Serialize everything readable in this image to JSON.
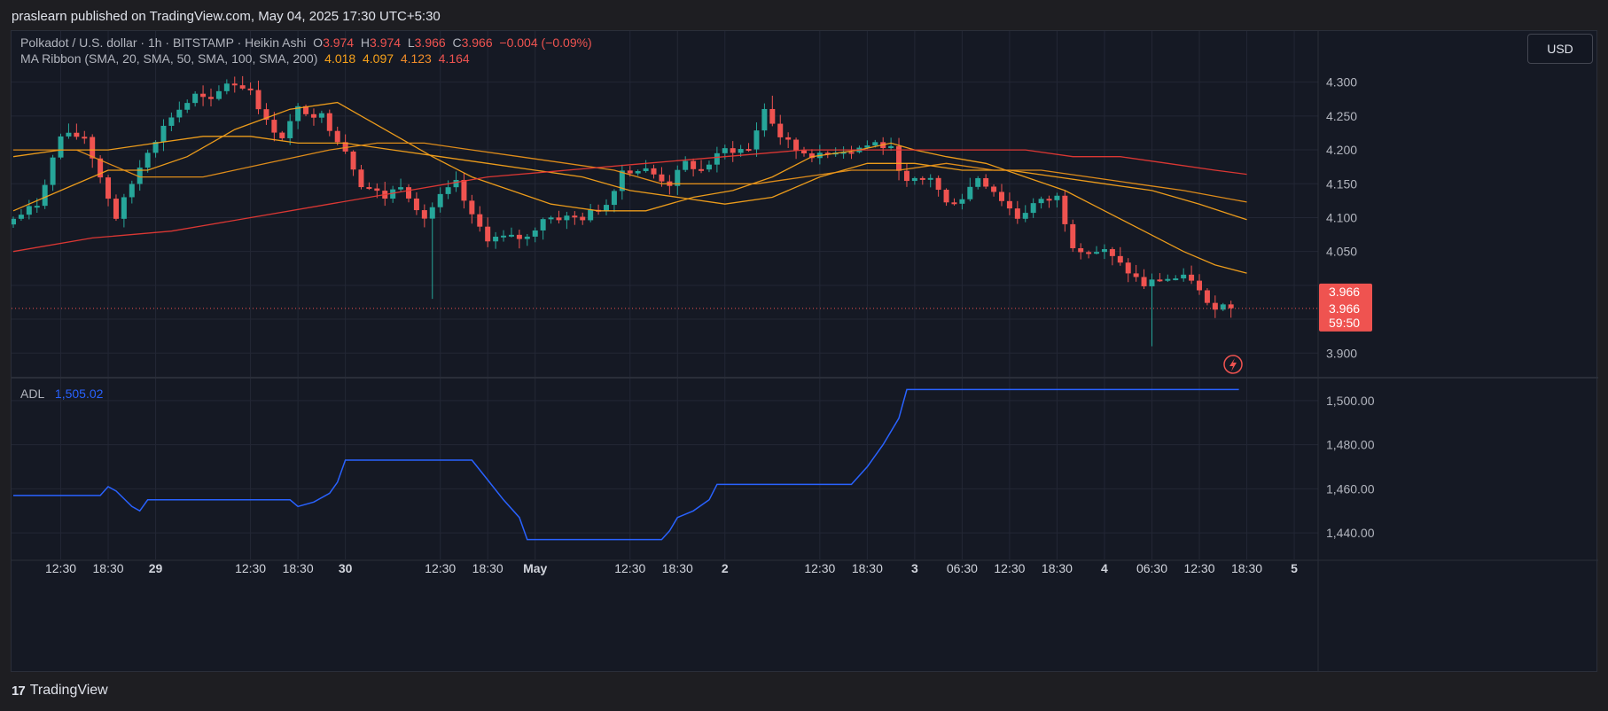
{
  "header": {
    "publish_line": "praslearn published on TradingView.com, May 04, 2025 17:30 UTC+5:30"
  },
  "legend": {
    "symbol": "Polkadot / U.S. dollar · 1h · BITSTAMP · Heikin Ashi",
    "o_label": "O",
    "o_value": "3.974",
    "h_label": "H",
    "h_value": "3.974",
    "l_label": "L",
    "l_value": "3.966",
    "c_label": "C",
    "c_value": "3.966",
    "change": "−0.004 (−0.09%)",
    "ma_title": "MA Ribbon (SMA, 20, SMA, 50, SMA, 100, SMA, 200)",
    "ma_values": [
      "4.018",
      "4.097",
      "4.123",
      "4.164"
    ],
    "adl_title": "ADL",
    "adl_value": "1,505.02"
  },
  "currency_button": "USD",
  "price_tag": {
    "last": "3.966",
    "close": "3.966",
    "countdown": "59:50"
  },
  "brand": {
    "logo": "17",
    "name": "TradingView"
  },
  "colors": {
    "up": "#26a69a",
    "down": "#ef5350",
    "ma20": "#f7a21b",
    "ma50": "#f7a21b",
    "ma100": "#e8911a",
    "ma200": "#e53935",
    "adl": "#2962ff",
    "background": "#151924",
    "grid": "#232735"
  },
  "chart_data": [
    {
      "type": "candlestick",
      "style": "Heikin Ashi",
      "timeframe": "1h",
      "y_ticks": [
        3.9,
        3.95,
        4.0,
        4.05,
        4.1,
        4.15,
        4.2,
        4.25,
        4.3
      ],
      "y_tick_labels": [
        "3.900",
        "",
        "",
        "4.050",
        "4.100",
        "4.150",
        "4.200",
        "4.250",
        "4.300"
      ],
      "ylim": [
        3.865,
        4.365
      ],
      "x_labels": [
        {
          "label": "12:30",
          "bar": 6
        },
        {
          "label": "18:30",
          "bar": 12
        },
        {
          "label": "29",
          "bar": 18
        },
        {
          "label": "12:30",
          "bar": 30
        },
        {
          "label": "18:30",
          "bar": 36
        },
        {
          "label": "30",
          "bar": 42
        },
        {
          "label": "12:30",
          "bar": 54
        },
        {
          "label": "18:30",
          "bar": 60
        },
        {
          "label": "May",
          "bar": 66
        },
        {
          "label": "12:30",
          "bar": 78
        },
        {
          "label": "18:30",
          "bar": 84
        },
        {
          "label": "2",
          "bar": 90
        },
        {
          "label": "12:30",
          "bar": 102
        },
        {
          "label": "18:30",
          "bar": 108
        },
        {
          "label": "3",
          "bar": 114
        },
        {
          "label": "06:30",
          "bar": 120
        },
        {
          "label": "12:30",
          "bar": 126
        },
        {
          "label": "18:30",
          "bar": 132
        },
        {
          "label": "4",
          "bar": 138
        },
        {
          "label": "06:30",
          "bar": 144
        },
        {
          "label": "12:30",
          "bar": 150
        },
        {
          "label": "18:30",
          "bar": 156
        },
        {
          "label": "5",
          "bar": 162
        }
      ],
      "anchors": [
        [
          0,
          4.09
        ],
        [
          4,
          4.12
        ],
        [
          7,
          4.22
        ],
        [
          10,
          4.22
        ],
        [
          12,
          4.16
        ],
        [
          14,
          4.1
        ],
        [
          16,
          4.15
        ],
        [
          18,
          4.2
        ],
        [
          21,
          4.25
        ],
        [
          24,
          4.28
        ],
        [
          26,
          4.27
        ],
        [
          28,
          4.3
        ],
        [
          31,
          4.29
        ],
        [
          33,
          4.24
        ],
        [
          35,
          4.22
        ],
        [
          37,
          4.26
        ],
        [
          40,
          4.25
        ],
        [
          43,
          4.2
        ],
        [
          45,
          4.15
        ],
        [
          48,
          4.13
        ],
        [
          50,
          4.15
        ],
        [
          53,
          4.1
        ],
        [
          55,
          4.13
        ],
        [
          57,
          4.15
        ],
        [
          59,
          4.1
        ],
        [
          61,
          4.07
        ],
        [
          63,
          4.07
        ],
        [
          66,
          4.07
        ],
        [
          68,
          4.1
        ],
        [
          70,
          4.1
        ],
        [
          73,
          4.1
        ],
        [
          76,
          4.12
        ],
        [
          78,
          4.17
        ],
        [
          81,
          4.17
        ],
        [
          84,
          4.15
        ],
        [
          86,
          4.18
        ],
        [
          88,
          4.17
        ],
        [
          91,
          4.2
        ],
        [
          94,
          4.2
        ],
        [
          96,
          4.26
        ],
        [
          98,
          4.22
        ],
        [
          100,
          4.2
        ],
        [
          103,
          4.19
        ],
        [
          105,
          4.2
        ],
        [
          107,
          4.2
        ],
        [
          110,
          4.21
        ],
        [
          112,
          4.2
        ],
        [
          114,
          4.15
        ],
        [
          117,
          4.16
        ],
        [
          119,
          4.12
        ],
        [
          121,
          4.13
        ],
        [
          123,
          4.16
        ],
        [
          125,
          4.14
        ],
        [
          128,
          4.1
        ],
        [
          130,
          4.12
        ],
        [
          133,
          4.13
        ],
        [
          135,
          4.06
        ],
        [
          137,
          4.05
        ],
        [
          139,
          4.05
        ],
        [
          141,
          4.03
        ],
        [
          143,
          4.01
        ],
        [
          144,
          4.0
        ],
        [
          146,
          4.01
        ],
        [
          148,
          4.01
        ],
        [
          150,
          4.01
        ],
        [
          152,
          3.97
        ],
        [
          154,
          3.97
        ]
      ],
      "notable_wicks": [
        {
          "bar": 53,
          "low": 3.98
        },
        {
          "bar": 96,
          "high": 4.28
        },
        {
          "bar": 144,
          "low": 3.91
        }
      ],
      "series": [
        {
          "name": "SMA 20",
          "last": 4.018,
          "points": [
            [
              0,
              4.11
            ],
            [
              6,
              4.14
            ],
            [
              12,
              4.17
            ],
            [
              17,
              4.17
            ],
            [
              22,
              4.19
            ],
            [
              28,
              4.23
            ],
            [
              35,
              4.26
            ],
            [
              41,
              4.27
            ],
            [
              47,
              4.23
            ],
            [
              53,
              4.19
            ],
            [
              58,
              4.16
            ],
            [
              63,
              4.14
            ],
            [
              68,
              4.12
            ],
            [
              74,
              4.11
            ],
            [
              80,
              4.11
            ],
            [
              86,
              4.13
            ],
            [
              91,
              4.14
            ],
            [
              96,
              4.16
            ],
            [
              101,
              4.19
            ],
            [
              107,
              4.2
            ],
            [
              111,
              4.21
            ],
            [
              114,
              4.2
            ],
            [
              118,
              4.19
            ],
            [
              123,
              4.18
            ],
            [
              128,
              4.16
            ],
            [
              133,
              4.14
            ],
            [
              138,
              4.11
            ],
            [
              143,
              4.08
            ],
            [
              148,
              4.05
            ],
            [
              152,
              4.03
            ],
            [
              156,
              4.018
            ]
          ]
        },
        {
          "name": "SMA 50",
          "last": 4.097,
          "points": [
            [
              0,
              4.19
            ],
            [
              6,
              4.2
            ],
            [
              12,
              4.2
            ],
            [
              18,
              4.21
            ],
            [
              24,
              4.22
            ],
            [
              30,
              4.22
            ],
            [
              36,
              4.21
            ],
            [
              42,
              4.21
            ],
            [
              48,
              4.2
            ],
            [
              54,
              4.19
            ],
            [
              60,
              4.18
            ],
            [
              66,
              4.17
            ],
            [
              72,
              4.16
            ],
            [
              78,
              4.14
            ],
            [
              84,
              4.13
            ],
            [
              90,
              4.12
            ],
            [
              96,
              4.13
            ],
            [
              102,
              4.16
            ],
            [
              108,
              4.18
            ],
            [
              114,
              4.18
            ],
            [
              120,
              4.17
            ],
            [
              126,
              4.17
            ],
            [
              132,
              4.16
            ],
            [
              138,
              4.15
            ],
            [
              144,
              4.14
            ],
            [
              150,
              4.12
            ],
            [
              156,
              4.097
            ]
          ]
        },
        {
          "name": "SMA 100",
          "last": 4.123,
          "points": [
            [
              0,
              4.2
            ],
            [
              8,
              4.2
            ],
            [
              16,
              4.16
            ],
            [
              24,
              4.16
            ],
            [
              32,
              4.18
            ],
            [
              40,
              4.2
            ],
            [
              46,
              4.21
            ],
            [
              52,
              4.21
            ],
            [
              58,
              4.2
            ],
            [
              64,
              4.19
            ],
            [
              70,
              4.18
            ],
            [
              76,
              4.17
            ],
            [
              82,
              4.15
            ],
            [
              88,
              4.15
            ],
            [
              94,
              4.15
            ],
            [
              100,
              4.16
            ],
            [
              106,
              4.17
            ],
            [
              112,
              4.17
            ],
            [
              118,
              4.18
            ],
            [
              124,
              4.17
            ],
            [
              130,
              4.17
            ],
            [
              136,
              4.16
            ],
            [
              142,
              4.15
            ],
            [
              148,
              4.14
            ],
            [
              156,
              4.123
            ]
          ]
        },
        {
          "name": "SMA 200",
          "last": 4.164,
          "points": [
            [
              0,
              4.05
            ],
            [
              10,
              4.07
            ],
            [
              20,
              4.08
            ],
            [
              30,
              4.1
            ],
            [
              40,
              4.12
            ],
            [
              50,
              4.14
            ],
            [
              60,
              4.16
            ],
            [
              70,
              4.17
            ],
            [
              80,
              4.18
            ],
            [
              90,
              4.19
            ],
            [
              100,
              4.2
            ],
            [
              110,
              4.2
            ],
            [
              116,
              4.2
            ],
            [
              122,
              4.2
            ],
            [
              128,
              4.2
            ],
            [
              134,
              4.19
            ],
            [
              140,
              4.19
            ],
            [
              146,
              4.18
            ],
            [
              152,
              4.17
            ],
            [
              156,
              4.164
            ]
          ]
        }
      ]
    },
    {
      "type": "line",
      "name": "ADL",
      "ylim": [
        1428,
        1510
      ],
      "y_ticks": [
        1440,
        1460,
        1480,
        1500
      ],
      "y_tick_labels": [
        "1,440.00",
        "1,460.00",
        "1,480.00",
        "1,500.00"
      ],
      "points": [
        [
          0,
          1457
        ],
        [
          11,
          1457
        ],
        [
          12,
          1461
        ],
        [
          13,
          1459
        ],
        [
          15,
          1452
        ],
        [
          16,
          1450
        ],
        [
          17,
          1455
        ],
        [
          35,
          1455
        ],
        [
          36,
          1452
        ],
        [
          38,
          1454
        ],
        [
          40,
          1458
        ],
        [
          41,
          1463
        ],
        [
          42,
          1473
        ],
        [
          58,
          1473
        ],
        [
          60,
          1464
        ],
        [
          62,
          1455
        ],
        [
          64,
          1447
        ],
        [
          65,
          1437
        ],
        [
          82,
          1437
        ],
        [
          83,
          1441
        ],
        [
          84,
          1447
        ],
        [
          86,
          1450
        ],
        [
          88,
          1455
        ],
        [
          89,
          1462
        ],
        [
          106,
          1462
        ],
        [
          108,
          1470
        ],
        [
          110,
          1480
        ],
        [
          112,
          1492
        ],
        [
          113,
          1505
        ],
        [
          155,
          1505
        ]
      ]
    }
  ]
}
